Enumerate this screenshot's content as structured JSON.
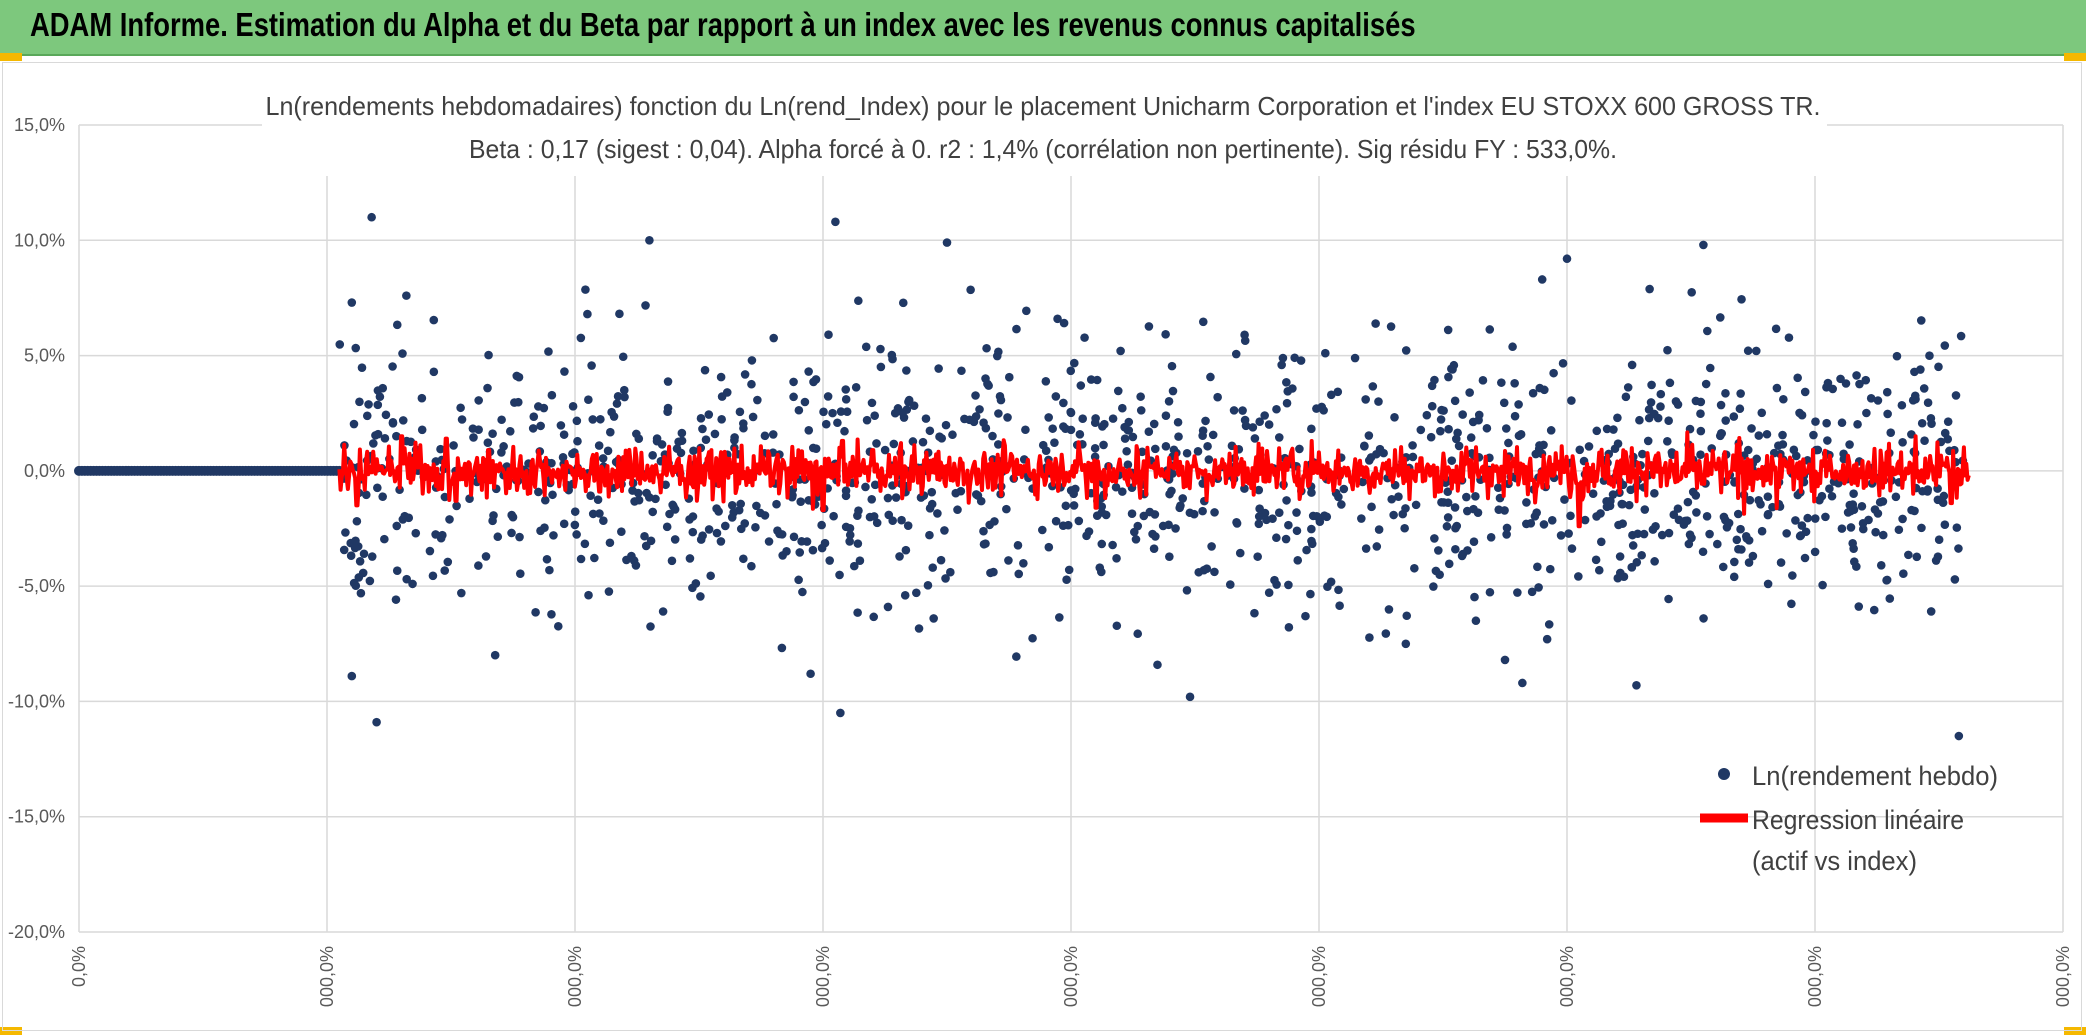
{
  "banner": {
    "title": "ADAM Informe. Estimation du Alpha et du Beta par rapport à un index avec les revenus connus capitalisés",
    "background": "#7dc87d",
    "accent": "#f5b800"
  },
  "chart_data": {
    "type": "scatter",
    "title": "Ln(rendements hebdomadaires) fonction du Ln(rend_Index) pour le placement Unicharm Corporation et l'index EU STOXX 600 GROSS TR.",
    "subtitle": "Beta : 0,17 (sigest : 0,04). Alpha forcé à 0. r2 : 1,4% (corrélation non pertinente). Sig résidu FY : 533,0%.",
    "xlabel": "",
    "ylabel": "",
    "y_ticks": [
      "15,0%",
      "10,0%",
      "5,0%",
      "0,0%",
      "-5,0%",
      "-10,0%",
      "-15,0%",
      "-20,0%"
    ],
    "y_tick_values": [
      15,
      10,
      5,
      0,
      -5,
      -10,
      -15,
      -20
    ],
    "x_ticks": [
      "0,0%",
      "000,0%",
      "000,0%",
      "000,0%",
      "000,0%",
      "000,0%",
      "000,0%",
      "000,0%",
      "000,0%"
    ],
    "xlim": [
      0,
      8
    ],
    "ylim": [
      -20,
      15
    ],
    "grid": true,
    "legend_position": "right",
    "series": [
      {
        "name": "Ln(rendement hebdo)",
        "kind": "scatter",
        "color": "#203864",
        "zero_run": {
          "x_from": 0,
          "x_to": 1.05,
          "y": 0,
          "count": 90
        },
        "active_range": [
          1.05,
          7.6
        ],
        "count": 1350,
        "sd": 2.9,
        "highlights": [
          [
            1.18,
            11.0
          ],
          [
            2.3,
            10.0
          ],
          [
            3.05,
            10.8
          ],
          [
            3.5,
            9.9
          ],
          [
            6.55,
            9.8
          ],
          [
            6.0,
            9.2
          ],
          [
            1.1,
            7.3
          ],
          [
            1.32,
            7.6
          ],
          [
            4.7,
            5.9
          ],
          [
            5.9,
            8.3
          ],
          [
            2.05,
            6.8
          ],
          [
            4.2,
            5.2
          ],
          [
            1.2,
            -10.9
          ],
          [
            3.07,
            -10.5
          ],
          [
            4.48,
            -9.8
          ],
          [
            5.82,
            -9.2
          ],
          [
            6.28,
            -9.3
          ],
          [
            7.58,
            -11.5
          ],
          [
            1.1,
            -8.9
          ],
          [
            2.95,
            -8.8
          ],
          [
            5.35,
            -7.5
          ],
          [
            5.75,
            -8.2
          ],
          [
            5.92,
            -7.3
          ]
        ]
      },
      {
        "name": "Regression linéaire",
        "name_line2": "(actif vs index)",
        "kind": "line",
        "color": "#ff0000",
        "beta": 0.17,
        "active_range": [
          1.05,
          7.62
        ],
        "count": 1350,
        "sd": 0.45,
        "spikes": [
          [
            1.3,
            1.5
          ],
          [
            1.48,
            1.4
          ],
          [
            1.52,
            -1.3
          ],
          [
            1.12,
            -1.5
          ],
          [
            2.1,
            -0.9
          ],
          [
            3.08,
            1.3
          ],
          [
            3.0,
            -1.7
          ],
          [
            4.1,
            -1.6
          ],
          [
            4.93,
            -0.9
          ],
          [
            5.0,
            0.8
          ],
          [
            6.05,
            -2.4
          ],
          [
            7.55,
            -1.4
          ],
          [
            2.55,
            0.9
          ],
          [
            3.2,
            0.9
          ],
          [
            1.65,
            0.9
          ]
        ]
      }
    ]
  }
}
